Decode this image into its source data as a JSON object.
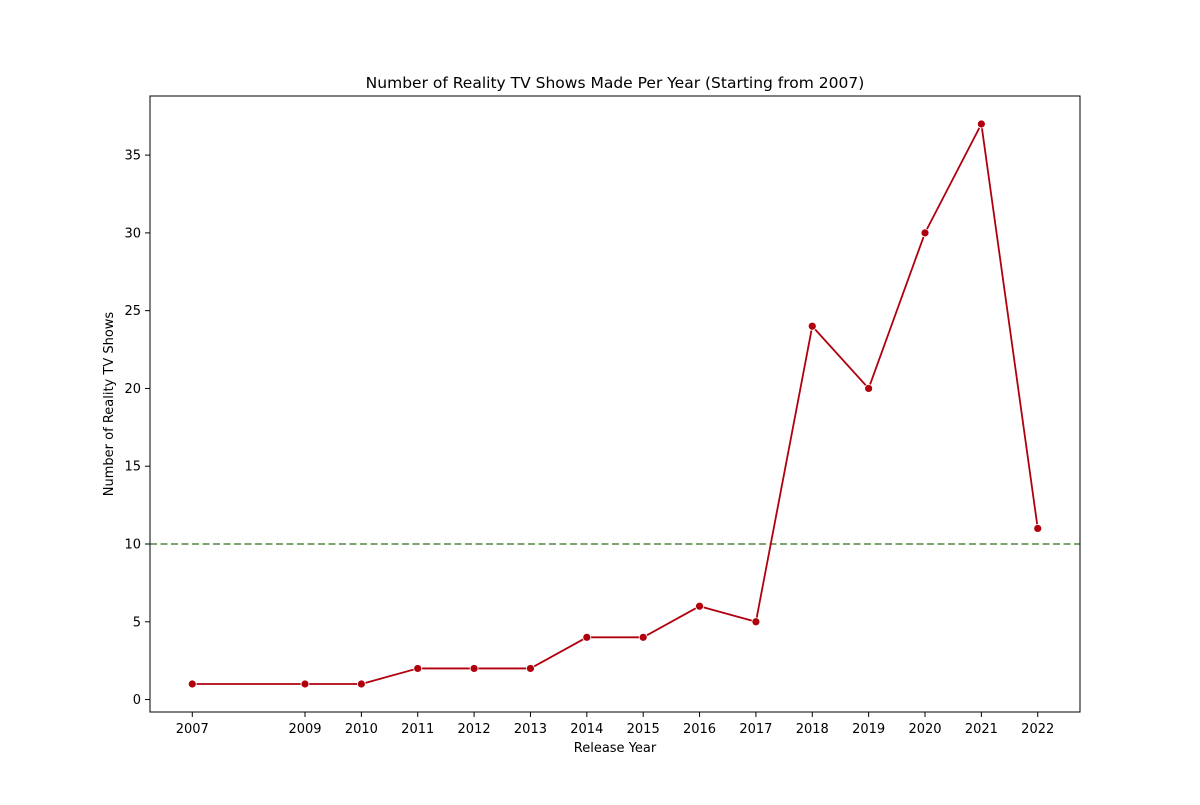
{
  "chart_data": {
    "type": "line",
    "title": "Number of Reality TV Shows Made Per Year (Starting from 2007)",
    "xlabel": "Release Year",
    "ylabel": "Number of Reality TV Shows",
    "x": [
      2007,
      2009,
      2010,
      2011,
      2012,
      2013,
      2014,
      2015,
      2016,
      2017,
      2018,
      2019,
      2020,
      2021,
      2022
    ],
    "x_tick_labels": [
      "2007",
      "2009",
      "2010",
      "2011",
      "2012",
      "2013",
      "2014",
      "2015",
      "2016",
      "2017",
      "2018",
      "2019",
      "2020",
      "2021",
      "2022"
    ],
    "values": [
      1,
      1,
      1,
      2,
      2,
      2,
      4,
      4,
      6,
      5,
      24,
      20,
      30,
      37,
      11
    ],
    "y_ticks": [
      0,
      5,
      10,
      15,
      20,
      25,
      30,
      35
    ],
    "y_tick_labels": [
      "0",
      "5",
      "10",
      "15",
      "20",
      "25",
      "30",
      "35"
    ],
    "xlim": [
      2006.25,
      2022.75
    ],
    "ylim": [
      -0.8,
      38.8
    ],
    "reference_line": {
      "y": 10,
      "style": "dashed",
      "color": "#6a9a5a"
    },
    "line_color": "#b0000e",
    "marker": "circle",
    "grid": false,
    "legend": "none"
  }
}
